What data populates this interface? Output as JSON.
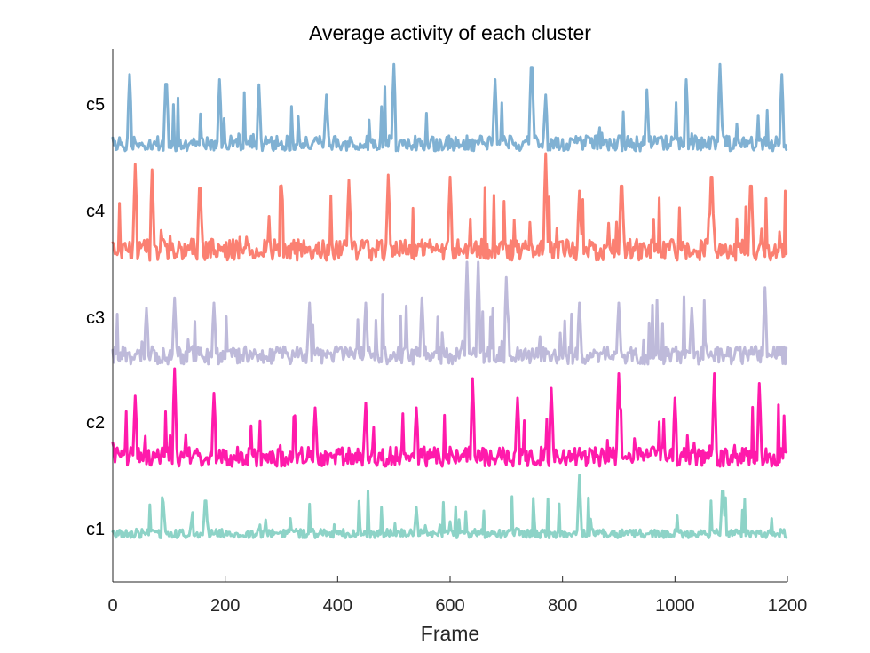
{
  "chart_data": {
    "type": "line",
    "title": "Average activity of each cluster",
    "xlabel": "Frame",
    "ylabel": "",
    "xlim": [
      0,
      1200
    ],
    "xticks": [
      0,
      200,
      400,
      600,
      800,
      1000,
      1200
    ],
    "xtick_labels": [
      "0",
      "200",
      "400",
      "600",
      "800",
      "1000",
      "1200"
    ],
    "n_frames": 1200,
    "series": [
      {
        "name": "c1",
        "color": "#8dd3c7",
        "baseline": 0.12,
        "peak_frames": [
          90,
          165,
          540,
          600,
          830,
          1085
        ],
        "peak_heights": [
          0.62,
          0.78,
          0.55,
          0.35,
          1.0,
          0.95
        ],
        "noise": 0.25
      },
      {
        "name": "c2",
        "color": "#ff1aab",
        "baseline": 0.0,
        "peak_frames": [
          40,
          110,
          180,
          360,
          450,
          540,
          640,
          720,
          780,
          900,
          1000,
          1070,
          1150
        ],
        "peak_heights": [
          0.72,
          1.0,
          0.75,
          0.6,
          0.65,
          0.6,
          0.9,
          0.7,
          0.8,
          0.95,
          0.7,
          0.95,
          0.85
        ],
        "noise": 0.4
      },
      {
        "name": "c3",
        "color": "#bebada",
        "baseline": 0.0,
        "peak_frames": [
          60,
          110,
          180,
          350,
          450,
          550,
          630,
          650,
          700,
          830,
          900,
          1030,
          1160
        ],
        "peak_heights": [
          0.55,
          0.65,
          0.6,
          0.6,
          0.6,
          0.65,
          1.0,
          1.0,
          0.85,
          0.6,
          0.6,
          0.55,
          0.75
        ],
        "noise": 0.35
      },
      {
        "name": "c4",
        "color": "#fb8072",
        "baseline": 0.0,
        "peak_frames": [
          40,
          70,
          155,
          300,
          420,
          490,
          600,
          770,
          830,
          905,
          1065,
          1135
        ],
        "peak_heights": [
          0.9,
          0.85,
          0.82,
          0.7,
          0.75,
          0.8,
          0.78,
          1.0,
          0.65,
          0.85,
          0.95,
          0.85
        ],
        "noise": 0.4
      },
      {
        "name": "c5",
        "color": "#80b1d3",
        "baseline": 0.0,
        "peak_frames": [
          30,
          95,
          190,
          260,
          380,
          500,
          680,
          745,
          770,
          950,
          1020,
          1080,
          1190
        ],
        "peak_heights": [
          0.75,
          0.8,
          0.7,
          0.65,
          0.55,
          0.85,
          0.7,
          1.0,
          0.55,
          0.6,
          0.7,
          0.85,
          0.75
        ],
        "noise": 0.3
      }
    ]
  }
}
